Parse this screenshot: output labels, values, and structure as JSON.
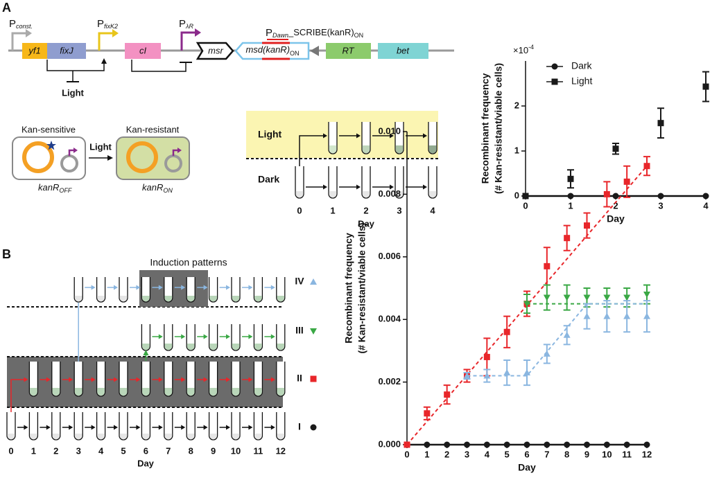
{
  "panel_a": {
    "label": "A",
    "circuit": {
      "promoters": [
        {
          "name": "P",
          "sub": "const."
        },
        {
          "name": "P",
          "sub": "fixK2"
        },
        {
          "name": "P",
          "sub": "λR"
        }
      ],
      "genes": [
        "yf1",
        "fixJ",
        "cI",
        "RT",
        "bet"
      ],
      "msr": "msr",
      "msd": {
        "name": "msd(kanR)",
        "sub": "ON"
      },
      "scribe": {
        "p": "P",
        "sub": "Dawn",
        "name": "_SCRIBE(kanR)",
        "sub2": "ON"
      },
      "light": "Light"
    },
    "cells": {
      "sensitive": "Kan-sensitive",
      "resistant": "Kan-resistant",
      "light": "Light",
      "off": {
        "name": "kanR",
        "sub": "OFF"
      },
      "on": {
        "name": "kanR",
        "sub": "ON"
      }
    },
    "timeline": {
      "light": "Light",
      "dark": "Dark",
      "days": [
        "0",
        "1",
        "2",
        "3",
        "4"
      ],
      "xlabel": "Day"
    }
  },
  "panel_b": {
    "label": "B",
    "title": "Induction patterns",
    "days": [
      "0",
      "1",
      "2",
      "3",
      "4",
      "5",
      "6",
      "7",
      "8",
      "9",
      "10",
      "11",
      "12"
    ],
    "xlabel": "Day"
  },
  "chart_data": [
    {
      "type": "scatter",
      "x": [
        0,
        1,
        2,
        3,
        4
      ],
      "series": [
        {
          "name": "Dark",
          "color": "#1a1a1a",
          "marker": "circle",
          "values": [
            0,
            0,
            0,
            0,
            0
          ]
        },
        {
          "name": "Light",
          "color": "#1a1a1a",
          "marker": "square",
          "values": [
            0,
            0.38,
            1.05,
            1.62,
            2.43
          ],
          "errors": [
            0,
            0.2,
            0.12,
            0.33,
            0.33
          ]
        }
      ],
      "xlabel": "Day",
      "ylabel": [
        "Recombinant frequency",
        "(# Kan-resistant/viable cells)"
      ],
      "y_multiplier": {
        "base": "×10",
        "exponent": "-4"
      },
      "xlim": [
        0,
        4
      ],
      "ylim": [
        0,
        3
      ],
      "xticks": [
        0,
        1,
        2,
        3,
        4
      ],
      "yticks": [
        0,
        1,
        2
      ],
      "legend": "top-left"
    },
    {
      "type": "scatter",
      "x": [
        0,
        1,
        2,
        3,
        4,
        5,
        6,
        7,
        8,
        9,
        10,
        11,
        12
      ],
      "series": [
        {
          "name": "I",
          "color": "#1a1a1a",
          "marker": "circle",
          "values": [
            0,
            0,
            0,
            0,
            0,
            0,
            0,
            0,
            0,
            0,
            0,
            0,
            0
          ],
          "trend_x": [
            0,
            12
          ],
          "trend_y": [
            0,
            0
          ],
          "trend_style": "solid"
        },
        {
          "name": "II",
          "color": "#e8262a",
          "marker": "square",
          "values": [
            0,
            0.001,
            0.0016,
            0.0022,
            0.0028,
            0.0036,
            0.0045,
            0.0057,
            0.0066,
            0.007,
            0.008,
            0.0084,
            0.0089
          ],
          "errors": [
            0,
            0.0002,
            0.0003,
            0.0002,
            0.0006,
            0.0005,
            0.0004,
            0.0006,
            0.0004,
            0.0004,
            0.0004,
            0.0005,
            0.0003
          ],
          "trend_x": [
            0,
            12
          ],
          "trend_y": [
            0,
            0.0089
          ],
          "trend_style": "dashed"
        },
        {
          "name": "III",
          "color": "#3aa845",
          "marker": "triangle-down",
          "values": [
            null,
            null,
            null,
            null,
            null,
            null,
            0.0045,
            0.0047,
            0.0047,
            0.0047,
            0.0047,
            0.0047,
            0.0048
          ],
          "errors": [
            null,
            null,
            null,
            null,
            null,
            null,
            0.0003,
            0.0004,
            0.0004,
            0.0003,
            0.0003,
            0.0003,
            0.0003
          ],
          "trend_x": [
            6,
            12
          ],
          "trend_y": [
            0.0045,
            0.0045
          ],
          "trend_style": "dashed"
        },
        {
          "name": "IV",
          "color": "#8ab6e0",
          "marker": "triangle-up",
          "values": [
            null,
            null,
            null,
            0.0022,
            0.0022,
            0.0023,
            0.0023,
            0.0029,
            0.0035,
            0.0041,
            0.0041,
            0.0041,
            0.0041
          ],
          "errors": [
            null,
            null,
            null,
            0.0001,
            0.0002,
            0.0004,
            0.0004,
            0.0003,
            0.0003,
            0.0004,
            0.0005,
            0.0005,
            0.0005
          ],
          "trend_x": [
            3,
            6,
            9,
            12
          ],
          "trend_y": [
            0.0022,
            0.0022,
            0.0045,
            0.0045
          ],
          "trend_style": "dashed"
        }
      ],
      "xlabel": "Day",
      "ylabel": [
        "Recombinant frequency",
        "(# Kan-resistant/viable cells)"
      ],
      "xlim": [
        0,
        12
      ],
      "ylim": [
        0,
        0.01
      ],
      "xticks": [
        0,
        1,
        2,
        3,
        4,
        5,
        6,
        7,
        8,
        9,
        10,
        11,
        12
      ],
      "yticks": [
        {
          "value": 0,
          "label": "0.000"
        },
        {
          "value": 0.002,
          "label": "0.002"
        },
        {
          "value": 0.004,
          "label": "0.004"
        },
        {
          "value": 0.006,
          "label": "0.006"
        },
        {
          "value": 0.008,
          "label": "0.008"
        },
        {
          "value": 0.01,
          "label": "0.010"
        }
      ]
    }
  ]
}
